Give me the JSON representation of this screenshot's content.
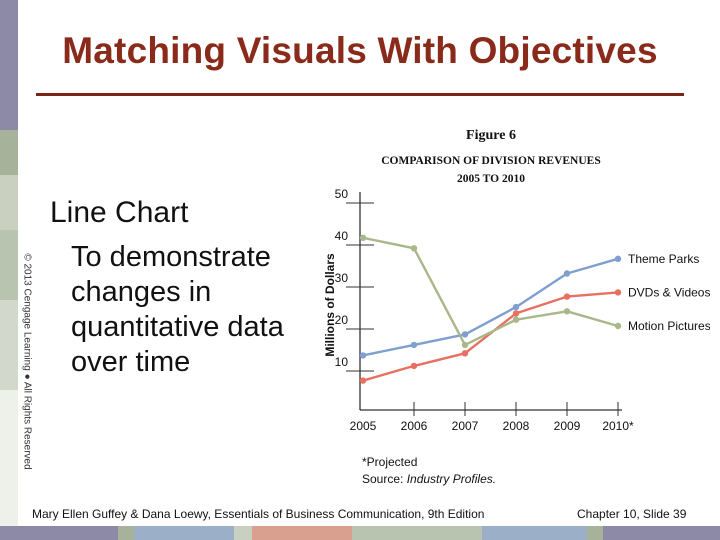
{
  "slide": {
    "title": "Matching Visuals With Objectives",
    "heading": "Line Chart",
    "description": "To demonstrate changes in quantitative data over time",
    "copyright": "© 2013 Cengage Learning ● All Rights Reserved",
    "footer_left": "Mary Ellen Guffey & Dana Loewy, Essentials of Business Communication, 9th Edition",
    "footer_right": "Chapter 10, Slide 39"
  },
  "colors": {
    "title": "#8a2a1a",
    "theme_parks": "#7f9fd0",
    "dvds": "#e87060",
    "motion": "#a8b88a"
  },
  "chart_data": {
    "type": "line",
    "figure_label": "Figure 6",
    "title": "COMPARISON OF DIVISION REVENUES",
    "subtitle": "2005 TO 2010",
    "ylabel": "Millions of Dollars",
    "xlabel": "",
    "ylim": [
      0,
      50
    ],
    "yticks": [
      "50",
      "40",
      "30",
      "20",
      "10"
    ],
    "categories": [
      "2005",
      "2006",
      "2007",
      "2008",
      "2009",
      "2010*"
    ],
    "series": [
      {
        "name": "Theme Parks",
        "values": [
          13,
          15.5,
          18,
          24.5,
          32.5,
          36
        ]
      },
      {
        "name": "DVDs & Videos",
        "values": [
          7,
          10.5,
          13.5,
          23,
          27,
          28
        ]
      },
      {
        "name": "Motion Pictures",
        "values": [
          41,
          38.5,
          15.5,
          21.5,
          23.5,
          20
        ]
      }
    ],
    "note": "*Projected",
    "source_prefix": "Source:",
    "source_text": "Industry Profiles."
  }
}
